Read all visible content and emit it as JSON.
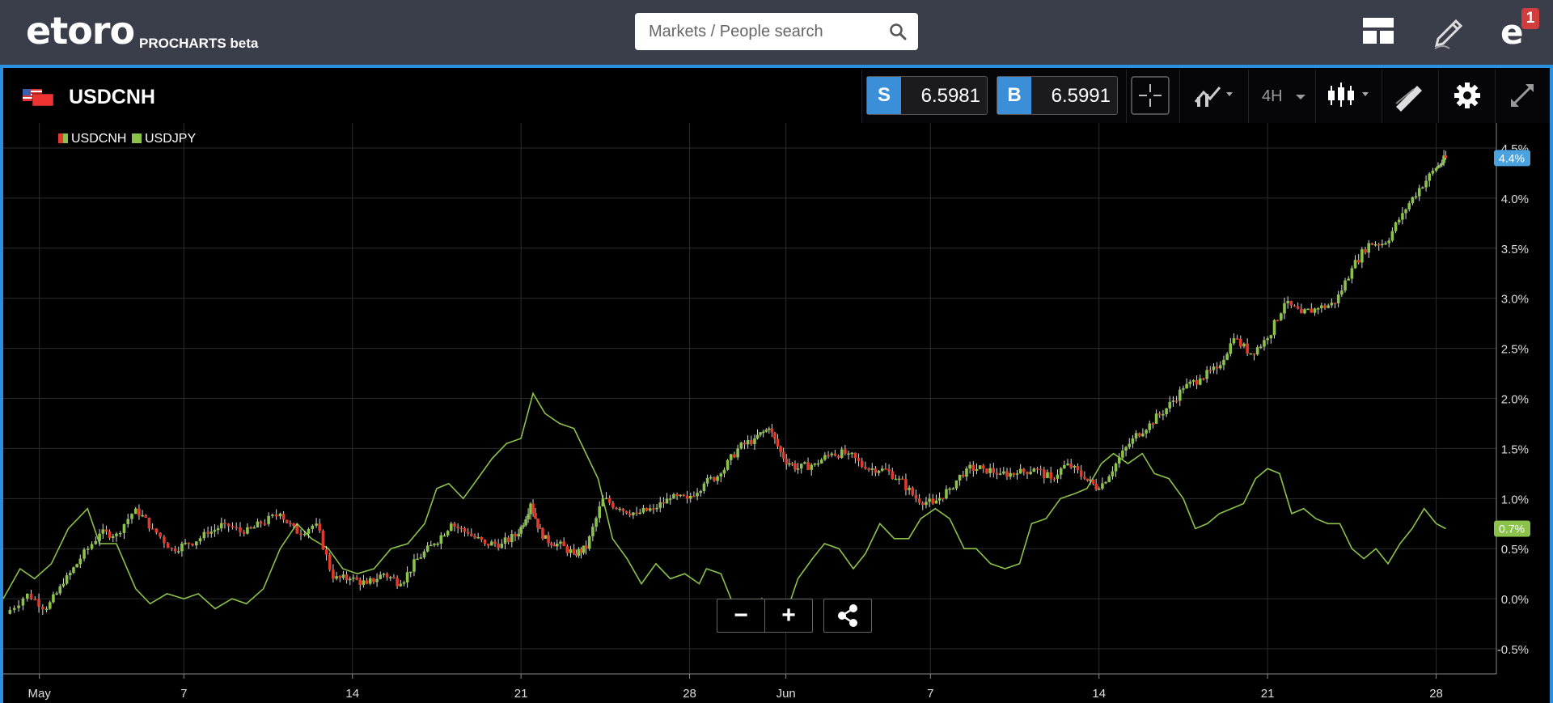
{
  "header": {
    "logo": "etoro",
    "subtitle": "PROCHARTS beta",
    "search_placeholder": "Markets / People search",
    "notification_count": "1",
    "icons": [
      "layout-icon",
      "edit-icon",
      "profile-icon",
      "search-icon"
    ]
  },
  "instrument": {
    "name": "USDCNH",
    "sell_label": "S",
    "sell_price": "6.5981",
    "buy_label": "B",
    "buy_price": "6.5991",
    "timeframe": "4H",
    "toolbar_icons": [
      "crosshair-icon",
      "indicators-icon",
      "candlestick-icon",
      "drawing-icon",
      "gear-icon",
      "fullscreen-icon"
    ]
  },
  "colors": {
    "accent_blue": "#3a8fd8",
    "up_candle": "#8bc34a",
    "down_candle": "#e03a2a",
    "compare_line": "#8bc34a",
    "usdcnh_badge": "#4aa3df",
    "usdjpy_badge": "#8bc34a"
  },
  "chart_data": {
    "type": "line",
    "title": "",
    "xlabel": "",
    "ylabel": "",
    "y_unit": "%",
    "ylim": [
      -0.75,
      4.75
    ],
    "yticks": [
      "4.5%",
      "4.0%",
      "3.5%",
      "3.0%",
      "2.5%",
      "2.0%",
      "1.5%",
      "1.0%",
      "0.5%",
      "0.0%",
      "-0.5%"
    ],
    "ytick_values": [
      4.5,
      4.0,
      3.5,
      3.0,
      2.5,
      2.0,
      1.5,
      1.0,
      0.5,
      0.0,
      -0.5
    ],
    "xticks": [
      "May",
      "7",
      "14",
      "21",
      "28",
      "Jun",
      "7",
      "14",
      "21",
      "28"
    ],
    "xtick_days": [
      0,
      6,
      13,
      20,
      27,
      31,
      37,
      44,
      51,
      58
    ],
    "xlim_days": [
      -1.5,
      60.5
    ],
    "grid": true,
    "legend": {
      "placement": "top-left",
      "entries": [
        "USDCNH",
        "USDJPY"
      ]
    },
    "zoom_controls": [
      "−",
      "+"
    ],
    "series": [
      {
        "name": "USDCNH",
        "style": "candlestick",
        "last_label": "4.4%",
        "points": [
          [
            -1.4,
            -0.15
          ],
          [
            -0.5,
            0.05
          ],
          [
            0.3,
            -0.1
          ],
          [
            1.0,
            0.15
          ],
          [
            1.7,
            0.4
          ],
          [
            2.5,
            0.65
          ],
          [
            3.2,
            0.65
          ],
          [
            4.0,
            0.9
          ],
          [
            4.7,
            0.7
          ],
          [
            5.5,
            0.5
          ],
          [
            6.2,
            0.55
          ],
          [
            7.0,
            0.65
          ],
          [
            7.7,
            0.75
          ],
          [
            8.5,
            0.65
          ],
          [
            9.2,
            0.75
          ],
          [
            10.0,
            0.85
          ],
          [
            10.7,
            0.65
          ],
          [
            11.5,
            0.75
          ],
          [
            12.2,
            0.2
          ],
          [
            12.9,
            0.2
          ],
          [
            13.6,
            0.15
          ],
          [
            14.3,
            0.25
          ],
          [
            15.0,
            0.15
          ],
          [
            15.7,
            0.4
          ],
          [
            16.4,
            0.55
          ],
          [
            17.1,
            0.75
          ],
          [
            17.8,
            0.65
          ],
          [
            18.5,
            0.55
          ],
          [
            19.2,
            0.55
          ],
          [
            19.9,
            0.65
          ],
          [
            20.4,
            0.95
          ],
          [
            20.9,
            0.6
          ],
          [
            21.5,
            0.55
          ],
          [
            22.2,
            0.45
          ],
          [
            22.7,
            0.5
          ],
          [
            23.4,
            1.0
          ],
          [
            24.1,
            0.9
          ],
          [
            24.8,
            0.85
          ],
          [
            25.5,
            0.9
          ],
          [
            26.2,
            1.0
          ],
          [
            26.9,
            1.0
          ],
          [
            27.6,
            1.15
          ],
          [
            28.3,
            1.25
          ],
          [
            29.0,
            1.5
          ],
          [
            29.7,
            1.6
          ],
          [
            30.3,
            1.7
          ],
          [
            30.9,
            1.4
          ],
          [
            31.5,
            1.3
          ],
          [
            32.2,
            1.35
          ],
          [
            32.9,
            1.45
          ],
          [
            33.6,
            1.45
          ],
          [
            34.3,
            1.3
          ],
          [
            35.0,
            1.3
          ],
          [
            35.7,
            1.2
          ],
          [
            36.4,
            1.0
          ],
          [
            37.1,
            0.95
          ],
          [
            37.8,
            1.1
          ],
          [
            38.5,
            1.3
          ],
          [
            39.2,
            1.3
          ],
          [
            39.9,
            1.25
          ],
          [
            40.6,
            1.25
          ],
          [
            41.3,
            1.3
          ],
          [
            42.0,
            1.2
          ],
          [
            42.7,
            1.35
          ],
          [
            43.4,
            1.2
          ],
          [
            44.0,
            1.1
          ],
          [
            44.7,
            1.35
          ],
          [
            45.4,
            1.6
          ],
          [
            46.1,
            1.75
          ],
          [
            46.8,
            1.9
          ],
          [
            47.5,
            2.1
          ],
          [
            48.2,
            2.2
          ],
          [
            48.9,
            2.3
          ],
          [
            49.6,
            2.6
          ],
          [
            50.3,
            2.45
          ],
          [
            51.0,
            2.6
          ],
          [
            51.7,
            2.95
          ],
          [
            52.4,
            2.85
          ],
          [
            53.1,
            2.9
          ],
          [
            53.8,
            2.95
          ],
          [
            54.5,
            3.3
          ],
          [
            55.2,
            3.55
          ],
          [
            55.9,
            3.55
          ],
          [
            56.6,
            3.85
          ],
          [
            57.3,
            4.1
          ],
          [
            58.0,
            4.3
          ],
          [
            58.4,
            4.4
          ]
        ]
      },
      {
        "name": "USDJPY",
        "style": "line",
        "last_label": "0.7%",
        "points": [
          [
            -1.5,
            0.0
          ],
          [
            -0.8,
            0.3
          ],
          [
            -0.2,
            0.2
          ],
          [
            0.5,
            0.35
          ],
          [
            1.2,
            0.7
          ],
          [
            2.0,
            0.9
          ],
          [
            2.5,
            0.55
          ],
          [
            3.2,
            0.55
          ],
          [
            4.0,
            0.1
          ],
          [
            4.6,
            -0.05
          ],
          [
            5.3,
            0.05
          ],
          [
            6.0,
            0.0
          ],
          [
            6.6,
            0.05
          ],
          [
            7.3,
            -0.1
          ],
          [
            8.0,
            0.0
          ],
          [
            8.6,
            -0.05
          ],
          [
            9.3,
            0.1
          ],
          [
            10.0,
            0.5
          ],
          [
            10.7,
            0.75
          ],
          [
            11.3,
            0.6
          ],
          [
            12.0,
            0.5
          ],
          [
            12.6,
            0.3
          ],
          [
            13.2,
            0.25
          ],
          [
            13.9,
            0.3
          ],
          [
            14.6,
            0.5
          ],
          [
            15.3,
            0.55
          ],
          [
            16.0,
            0.75
          ],
          [
            16.5,
            1.1
          ],
          [
            17.0,
            1.15
          ],
          [
            17.6,
            1.0
          ],
          [
            18.2,
            1.2
          ],
          [
            18.8,
            1.4
          ],
          [
            19.4,
            1.55
          ],
          [
            20.0,
            1.6
          ],
          [
            20.5,
            2.05
          ],
          [
            21.0,
            1.85
          ],
          [
            21.6,
            1.75
          ],
          [
            22.2,
            1.7
          ],
          [
            22.7,
            1.45
          ],
          [
            23.2,
            1.2
          ],
          [
            23.8,
            0.6
          ],
          [
            24.4,
            0.4
          ],
          [
            25.0,
            0.15
          ],
          [
            25.6,
            0.35
          ],
          [
            26.2,
            0.2
          ],
          [
            26.8,
            0.25
          ],
          [
            27.4,
            0.15
          ],
          [
            27.7,
            0.3
          ],
          [
            28.3,
            0.25
          ],
          [
            28.8,
            -0.05
          ],
          [
            29.4,
            -0.3
          ],
          [
            30.0,
            0.0
          ],
          [
            30.5,
            -0.25
          ],
          [
            31.0,
            -0.15
          ],
          [
            31.5,
            0.2
          ],
          [
            32.1,
            0.4
          ],
          [
            32.6,
            0.55
          ],
          [
            33.2,
            0.5
          ],
          [
            33.8,
            0.3
          ],
          [
            34.3,
            0.45
          ],
          [
            34.9,
            0.75
          ],
          [
            35.5,
            0.6
          ],
          [
            36.1,
            0.6
          ],
          [
            36.6,
            0.8
          ],
          [
            37.2,
            0.9
          ],
          [
            37.8,
            0.8
          ],
          [
            38.4,
            0.5
          ],
          [
            38.9,
            0.5
          ],
          [
            39.5,
            0.35
          ],
          [
            40.1,
            0.3
          ],
          [
            40.7,
            0.35
          ],
          [
            41.2,
            0.75
          ],
          [
            41.8,
            0.8
          ],
          [
            42.4,
            1.0
          ],
          [
            43.0,
            1.05
          ],
          [
            43.5,
            1.1
          ],
          [
            44.1,
            1.35
          ],
          [
            44.6,
            1.45
          ],
          [
            45.2,
            1.35
          ],
          [
            45.8,
            1.45
          ],
          [
            46.3,
            1.25
          ],
          [
            46.9,
            1.2
          ],
          [
            47.5,
            1.0
          ],
          [
            48.0,
            0.7
          ],
          [
            48.5,
            0.75
          ],
          [
            49.0,
            0.85
          ],
          [
            49.5,
            0.9
          ],
          [
            50.0,
            0.95
          ],
          [
            50.5,
            1.2
          ],
          [
            51.0,
            1.3
          ],
          [
            51.5,
            1.25
          ],
          [
            52.0,
            0.85
          ],
          [
            52.5,
            0.9
          ],
          [
            53.0,
            0.8
          ],
          [
            53.5,
            0.75
          ],
          [
            54.0,
            0.75
          ],
          [
            54.5,
            0.5
          ],
          [
            55.0,
            0.4
          ],
          [
            55.5,
            0.5
          ],
          [
            56.0,
            0.35
          ],
          [
            56.5,
            0.55
          ],
          [
            57.0,
            0.7
          ],
          [
            57.5,
            0.9
          ],
          [
            58.0,
            0.75
          ],
          [
            58.4,
            0.7
          ]
        ]
      }
    ]
  }
}
